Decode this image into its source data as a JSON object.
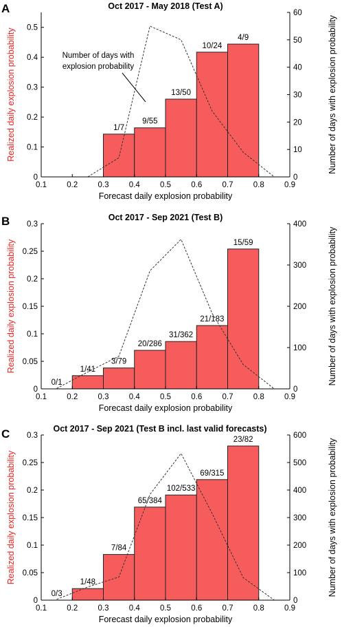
{
  "colors": {
    "bar_fill": "#f65c5c",
    "bar_edge": "#222222",
    "left_axis_label": "#ee2222",
    "line": "#333333"
  },
  "chart_data": [
    {
      "panel": "A",
      "type": "bar",
      "title": "Oct 2017 - May 2018  (Test A)",
      "xlabel": "Forecast daily explosion probability",
      "ylabel": "Realized daily explosion probability",
      "ylabel_right": "Number of days with explosion probability",
      "xlim": [
        0.1,
        0.9
      ],
      "ylim": [
        0,
        0.55
      ],
      "ylim_right": [
        0,
        60
      ],
      "xticks": [
        "0.1",
        "0.2",
        "0.3",
        "0.4",
        "0.5",
        "0.6",
        "0.7",
        "0.8",
        "0.9"
      ],
      "yticks": [
        "0",
        "0.1",
        "0.2",
        "0.3",
        "0.4",
        "0.5"
      ],
      "yticks_right": [
        "0",
        "10",
        "20",
        "30",
        "40",
        "50",
        "60"
      ],
      "bars": [
        {
          "x0": 0.3,
          "x1": 0.4,
          "value": 0.143,
          "label": "1/7"
        },
        {
          "x0": 0.4,
          "x1": 0.5,
          "value": 0.164,
          "label": "9/55"
        },
        {
          "x0": 0.5,
          "x1": 0.6,
          "value": 0.26,
          "label": "13/50"
        },
        {
          "x0": 0.6,
          "x1": 0.7,
          "value": 0.417,
          "label": "10/24"
        },
        {
          "x0": 0.7,
          "x1": 0.8,
          "value": 0.444,
          "label": "4/9"
        }
      ],
      "line": {
        "x": [
          0.25,
          0.35,
          0.45,
          0.55,
          0.65,
          0.75,
          0.85
        ],
        "y": [
          0,
          7,
          55,
          50,
          24,
          9,
          0
        ]
      },
      "annotation": [
        "Number of days with",
        "explosion probability"
      ]
    },
    {
      "panel": "B",
      "type": "bar",
      "title": "Oct 2017 - Sep 2021  (Test B)",
      "xlabel": "Forecast daily explosion probability",
      "ylabel": "Realized daily explosion probability",
      "ylabel_right": "Number of days with explosion probability",
      "xlim": [
        0.1,
        0.9
      ],
      "ylim": [
        0,
        0.3
      ],
      "ylim_right": [
        0,
        400
      ],
      "xticks": [
        "0.1",
        "0.2",
        "0.3",
        "0.4",
        "0.5",
        "0.6",
        "0.7",
        "0.8",
        "0.9"
      ],
      "yticks": [
        "0",
        "0.05",
        "0.1",
        "0.15",
        "0.2",
        "0.25",
        "0.3"
      ],
      "yticks_right": [
        "0",
        "100",
        "200",
        "300",
        "400"
      ],
      "bars": [
        {
          "x0": 0.1,
          "x1": 0.2,
          "value": 0,
          "label": "0/1"
        },
        {
          "x0": 0.2,
          "x1": 0.3,
          "value": 0.024,
          "label": "1/41"
        },
        {
          "x0": 0.3,
          "x1": 0.4,
          "value": 0.038,
          "label": "3/79"
        },
        {
          "x0": 0.4,
          "x1": 0.5,
          "value": 0.07,
          "label": "20/286"
        },
        {
          "x0": 0.5,
          "x1": 0.6,
          "value": 0.086,
          "label": "31/362"
        },
        {
          "x0": 0.6,
          "x1": 0.7,
          "value": 0.115,
          "label": "21/183"
        },
        {
          "x0": 0.7,
          "x1": 0.8,
          "value": 0.254,
          "label": "15/59"
        }
      ],
      "line": {
        "x": [
          0.15,
          0.25,
          0.35,
          0.45,
          0.55,
          0.65,
          0.75,
          0.85
        ],
        "y": [
          1,
          41,
          79,
          286,
          362,
          183,
          59,
          0
        ]
      }
    },
    {
      "panel": "C",
      "type": "bar",
      "title": "Oct 2017 - Sep 2021  (Test B incl. last valid forecasts)",
      "xlabel": "Forecast daily explosion probability",
      "ylabel": "Realized daily explosion probability",
      "ylabel_right": "Number of days with explosion probability",
      "xlim": [
        0.1,
        0.9
      ],
      "ylim": [
        0,
        0.3
      ],
      "ylim_right": [
        0,
        600
      ],
      "xticks": [
        "0.1",
        "0.2",
        "0.3",
        "0.4",
        "0.5",
        "0.6",
        "0.7",
        "0.8",
        "0.9"
      ],
      "yticks": [
        "0",
        "0.05",
        "0.1",
        "0.15",
        "0.2",
        "0.25",
        "0.3"
      ],
      "yticks_right": [
        "0",
        "100",
        "200",
        "300",
        "400",
        "500",
        "600"
      ],
      "bars": [
        {
          "x0": 0.1,
          "x1": 0.2,
          "value": 0,
          "label": "0/3"
        },
        {
          "x0": 0.2,
          "x1": 0.3,
          "value": 0.021,
          "label": "1/48"
        },
        {
          "x0": 0.3,
          "x1": 0.4,
          "value": 0.083,
          "label": "7/84"
        },
        {
          "x0": 0.4,
          "x1": 0.5,
          "value": 0.169,
          "label": "65/384"
        },
        {
          "x0": 0.5,
          "x1": 0.6,
          "value": 0.191,
          "label": "102/533"
        },
        {
          "x0": 0.6,
          "x1": 0.7,
          "value": 0.219,
          "label": "69/315"
        },
        {
          "x0": 0.7,
          "x1": 0.8,
          "value": 0.28,
          "label": "23/82"
        }
      ],
      "line": {
        "x": [
          0.15,
          0.25,
          0.35,
          0.45,
          0.55,
          0.65,
          0.75,
          0.85
        ],
        "y": [
          3,
          48,
          84,
          384,
          533,
          315,
          82,
          0
        ]
      }
    }
  ]
}
